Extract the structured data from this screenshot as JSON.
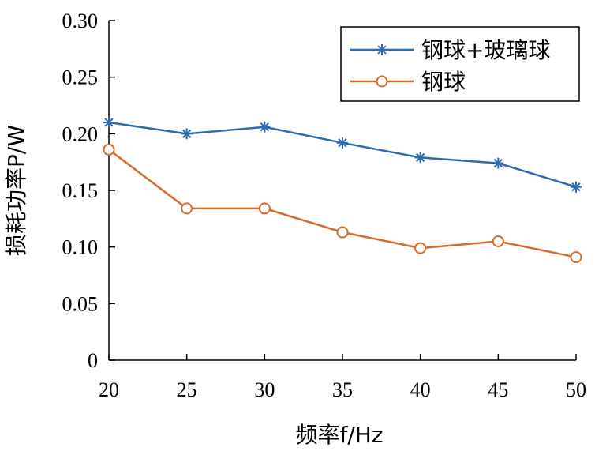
{
  "chart_data": {
    "type": "line",
    "x": [
      20,
      25,
      30,
      35,
      40,
      45,
      50
    ],
    "x_tick_labels": [
      "20",
      "25",
      "30",
      "35",
      "40",
      "45",
      "50"
    ],
    "y_tick_labels": [
      "0",
      "0.05",
      "0.10",
      "0.15",
      "0.20",
      "0.25",
      "0.30"
    ],
    "y_ticks": [
      0,
      0.05,
      0.1,
      0.15,
      0.2,
      0.25,
      0.3
    ],
    "xlabel": "频率f/Hz",
    "ylabel": "损耗功率P/W",
    "xlim": [
      20,
      50
    ],
    "ylim": [
      0,
      0.3
    ],
    "grid": false,
    "legend_position": "top-right",
    "series": [
      {
        "name": "钢球+玻璃球",
        "values": [
          0.21,
          0.2,
          0.206,
          0.192,
          0.179,
          0.174,
          0.153
        ],
        "color": "#2b6cb0",
        "marker": "asterisk"
      },
      {
        "name": "钢球",
        "values": [
          0.186,
          0.134,
          0.134,
          0.113,
          0.099,
          0.105,
          0.091
        ],
        "color": "#d46a2c",
        "marker": "circle"
      }
    ]
  }
}
